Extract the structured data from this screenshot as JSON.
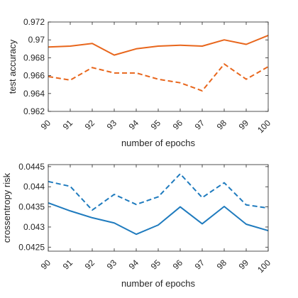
{
  "chart_data": [
    {
      "type": "line",
      "xlabel": "number of epochs",
      "ylabel": "test accuracy",
      "x": [
        90,
        91,
        92,
        93,
        94,
        95,
        96,
        97,
        98,
        99,
        100
      ],
      "xlim": [
        90,
        100
      ],
      "ylim": [
        0.962,
        0.972
      ],
      "x_tick_labels": [
        "90",
        "91",
        "92",
        "93",
        "94",
        "95",
        "96",
        "97",
        "98",
        "99",
        "100"
      ],
      "y_tick_labels": [
        "0.962",
        "0.964",
        "0.966",
        "0.968",
        "0.97",
        "0.972"
      ],
      "y_ticks": [
        0.962,
        0.964,
        0.966,
        0.968,
        0.97,
        0.972
      ],
      "grid": false,
      "series": [
        {
          "style": "solid",
          "color": "#E8661C",
          "values": [
            0.9692,
            0.9693,
            0.9696,
            0.9683,
            0.969,
            0.9693,
            0.9694,
            0.9693,
            0.97,
            0.9695,
            0.9705
          ]
        },
        {
          "style": "dashed",
          "color": "#E8661C",
          "values": [
            0.9659,
            0.9655,
            0.9669,
            0.9663,
            0.9663,
            0.9656,
            0.9652,
            0.9643,
            0.9673,
            0.9656,
            0.967
          ]
        }
      ]
    },
    {
      "type": "line",
      "xlabel": "number of epochs",
      "ylabel": "crossentropy risk",
      "x": [
        90,
        91,
        92,
        93,
        94,
        95,
        96,
        97,
        98,
        99,
        100
      ],
      "xlim": [
        90,
        100
      ],
      "ylim": [
        0.0424,
        0.04455
      ],
      "x_tick_labels": [
        "90",
        "91",
        "92",
        "93",
        "94",
        "95",
        "96",
        "97",
        "98",
        "99",
        "100"
      ],
      "y_tick_labels": [
        "0.0425",
        "0.043",
        "0.0435",
        "0.044",
        "0.0445"
      ],
      "y_ticks": [
        0.0425,
        0.043,
        0.0435,
        0.044,
        0.0445
      ],
      "grid": false,
      "series": [
        {
          "style": "solid",
          "color": "#1F7BBE",
          "values": [
            0.0436,
            0.0434,
            0.04323,
            0.0431,
            0.04282,
            0.04305,
            0.0435,
            0.04308,
            0.04351,
            0.04307,
            0.04291
          ]
        },
        {
          "style": "dashed",
          "color": "#1F7BBE",
          "values": [
            0.04413,
            0.04401,
            0.04342,
            0.04381,
            0.04356,
            0.04375,
            0.04432,
            0.04373,
            0.0441,
            0.04355,
            0.04347
          ]
        }
      ]
    }
  ]
}
